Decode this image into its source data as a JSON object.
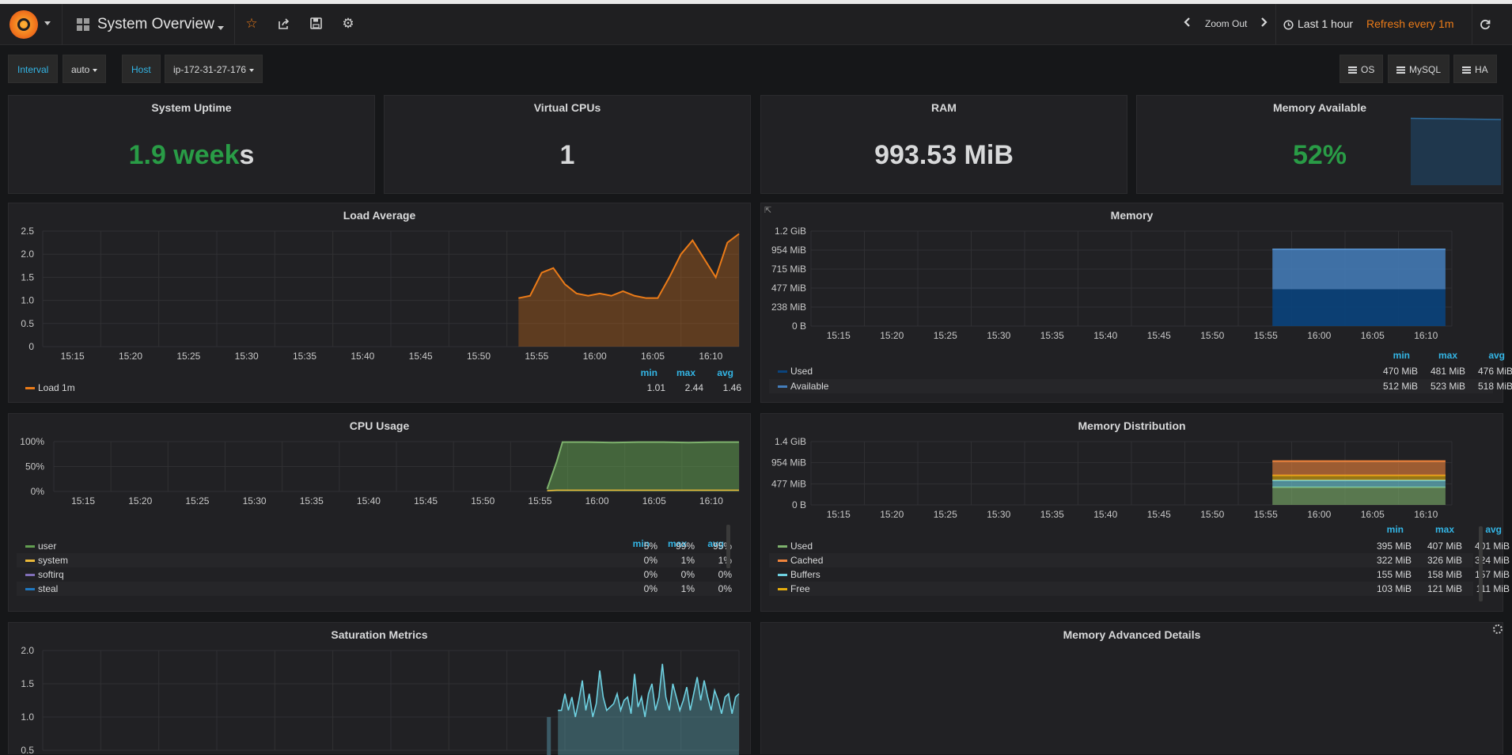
{
  "navbar": {
    "dashboard_title": "System Overview",
    "zoom_out": "Zoom Out",
    "time_range": "Last 1 hour",
    "refresh": "Refresh every 1m",
    "icons": [
      "grafana-logo-icon",
      "star-icon",
      "share-icon",
      "save-icon",
      "gear-icon",
      "chevron-left-icon",
      "chevron-right-icon",
      "clock-icon",
      "refresh-icon"
    ]
  },
  "variables": {
    "interval_label": "Interval",
    "interval_value": "auto",
    "host_label": "Host",
    "host_value": "ip-172-31-27-176"
  },
  "links": {
    "os": "OS",
    "mysql": "MySQL",
    "ha": "HA"
  },
  "stats": {
    "uptime": {
      "title": "System Uptime",
      "value_main": "1.9 week",
      "value_tail": "s"
    },
    "vcpus": {
      "title": "Virtual CPUs",
      "value": "1"
    },
    "ram": {
      "title": "RAM",
      "value": "993.53 MiB"
    },
    "mem_avail": {
      "title": "Memory Available",
      "value": "52%",
      "sparkline_level": 0.95
    }
  },
  "colors": {
    "green": "#299c46",
    "accent": "#33b5e5",
    "orange": "#eb7b18",
    "time_range": "#eb7b18"
  },
  "legend_headers": {
    "min": "min",
    "max": "max",
    "avg": "avg"
  },
  "panels": {
    "load": {
      "title": "Load Average",
      "legend": [
        {
          "name": "Load 1m",
          "min": "1.01",
          "max": "2.44",
          "avg": "1.46",
          "color": "#eb7b18"
        }
      ]
    },
    "memory": {
      "title": "Memory",
      "legend": [
        {
          "name": "Used",
          "min": "470 MiB",
          "max": "481 MiB",
          "avg": "476 MiB",
          "color": "#0a437c"
        },
        {
          "name": "Available",
          "min": "512 MiB",
          "max": "523 MiB",
          "avg": "518 MiB",
          "color": "#447ebc"
        }
      ]
    },
    "cpu": {
      "title": "CPU Usage",
      "legend": [
        {
          "name": "user",
          "min": "5%",
          "max": "99%",
          "avg": "95%",
          "color": "#629e51"
        },
        {
          "name": "system",
          "min": "0%",
          "max": "1%",
          "avg": "1%",
          "color": "#eab839"
        },
        {
          "name": "softirq",
          "min": "0%",
          "max": "0%",
          "avg": "0%",
          "color": "#806eb7"
        },
        {
          "name": "steal",
          "min": "0%",
          "max": "1%",
          "avg": "0%",
          "color": "#1f78c1"
        }
      ]
    },
    "memdist": {
      "title": "Memory Distribution",
      "legend": [
        {
          "name": "Used",
          "min": "395 MiB",
          "max": "407 MiB",
          "avg": "401 MiB",
          "color": "#7eb26d"
        },
        {
          "name": "Cached",
          "min": "322 MiB",
          "max": "326 MiB",
          "avg": "324 MiB",
          "color": "#ef843c"
        },
        {
          "name": "Buffers",
          "min": "155 MiB",
          "max": "158 MiB",
          "avg": "157 MiB",
          "color": "#6ed0e0"
        },
        {
          "name": "Free",
          "min": "103 MiB",
          "max": "121 MiB",
          "avg": "111 MiB",
          "color": "#e5ac0e"
        }
      ]
    },
    "saturation": {
      "title": "Saturation Metrics"
    },
    "memadv": {
      "title": "Memory Advanced Details"
    }
  },
  "chart_data": [
    {
      "type": "area",
      "title": "Load Average",
      "x_ticks": [
        "15:15",
        "15:20",
        "15:25",
        "15:30",
        "15:35",
        "15:40",
        "15:45",
        "15:50",
        "15:55",
        "16:00",
        "16:05",
        "16:10"
      ],
      "y_ticks": [
        "2.5",
        "2.0",
        "1.5",
        "1.0",
        "0.5",
        "0"
      ],
      "ylim": [
        0,
        2.5
      ],
      "xlim_minutes": [
        15.0,
        75.0
      ],
      "series": [
        {
          "name": "Load 1m",
          "color": "#eb7b18",
          "x": [
            56.0,
            57.0,
            58.0,
            59.0,
            60.0,
            61.0,
            62.0,
            63.0,
            64.0,
            65.0,
            66.0,
            67.0,
            68.0,
            69.0,
            70.0,
            71.0,
            72.0,
            73.0,
            74.0,
            75.0
          ],
          "y": [
            1.05,
            1.1,
            1.6,
            1.7,
            1.35,
            1.15,
            1.1,
            1.15,
            1.1,
            1.2,
            1.1,
            1.05,
            1.05,
            1.5,
            2.0,
            2.3,
            1.9,
            1.5,
            2.25,
            2.44
          ]
        }
      ]
    },
    {
      "type": "area",
      "title": "Memory",
      "x_ticks": [
        "15:15",
        "15:20",
        "15:25",
        "15:30",
        "15:35",
        "15:40",
        "15:45",
        "15:50",
        "15:55",
        "16:00",
        "16:05",
        "16:10"
      ],
      "y_ticks": [
        "1.2 GiB",
        "954 MiB",
        "715 MiB",
        "477 MiB",
        "238 MiB",
        "0 B"
      ],
      "stacked": true,
      "series": [
        {
          "name": "Used",
          "color": "#0a437c",
          "value_mib": 476
        },
        {
          "name": "Available",
          "color": "#447ebc",
          "value_mib": 518
        }
      ]
    },
    {
      "type": "area",
      "title": "CPU Usage",
      "x_ticks": [
        "15:15",
        "15:20",
        "15:25",
        "15:30",
        "15:35",
        "15:40",
        "15:45",
        "15:50",
        "15:55",
        "16:00",
        "16:05",
        "16:10"
      ],
      "y_ticks": [
        "100%",
        "50%",
        "0%"
      ],
      "ylim": [
        0,
        100
      ],
      "series": [
        {
          "name": "user",
          "color": "#629e51",
          "values_percent": [
            5,
            60,
            99,
            99,
            98,
            99,
            99,
            98,
            99,
            99
          ]
        },
        {
          "name": "system",
          "color": "#eab839",
          "values_percent": [
            0,
            1,
            1,
            1,
            1,
            1,
            1,
            1,
            1,
            1
          ]
        }
      ]
    },
    {
      "type": "area",
      "title": "Memory Distribution",
      "x_ticks": [
        "15:15",
        "15:20",
        "15:25",
        "15:30",
        "15:35",
        "15:40",
        "15:45",
        "15:50",
        "15:55",
        "16:00",
        "16:05",
        "16:10"
      ],
      "y_ticks": [
        "1.4 GiB",
        "954 MiB",
        "477 MiB",
        "0 B"
      ],
      "stacked": true,
      "series": [
        {
          "name": "Used",
          "color": "#7eb26d",
          "value_mib": 401
        },
        {
          "name": "Buffers",
          "color": "#6ed0e0",
          "value_mib": 157
        },
        {
          "name": "Free",
          "color": "#e5ac0e",
          "value_mib": 111
        },
        {
          "name": "Cached",
          "color": "#ef843c",
          "value_mib": 324
        }
      ]
    },
    {
      "type": "area",
      "title": "Saturation Metrics",
      "y_ticks": [
        "2.0",
        "1.5",
        "1.0",
        "0.5"
      ],
      "ylim": [
        0.5,
        2.0
      ],
      "series": [
        {
          "color": "#6ed0e0",
          "y": [
            1.1,
            1.1,
            1.35,
            1.1,
            1.3,
            1.0,
            1.25,
            1.55,
            1.1,
            1.35,
            1.0,
            1.2,
            1.7,
            1.3,
            1.1,
            1.15,
            1.2,
            1.35,
            1.1,
            1.25,
            1.3,
            1.05,
            1.65,
            1.15,
            1.3,
            1.0,
            1.35,
            1.5,
            1.1,
            1.3,
            1.8,
            1.3,
            1.1,
            1.5,
            1.3,
            1.1,
            1.25,
            1.45,
            1.1,
            1.35,
            1.6,
            1.25,
            1.55,
            1.3,
            1.1,
            1.4,
            1.25,
            1.05,
            1.3,
            1.35,
            1.05,
            1.3,
            1.35
          ]
        }
      ]
    }
  ]
}
